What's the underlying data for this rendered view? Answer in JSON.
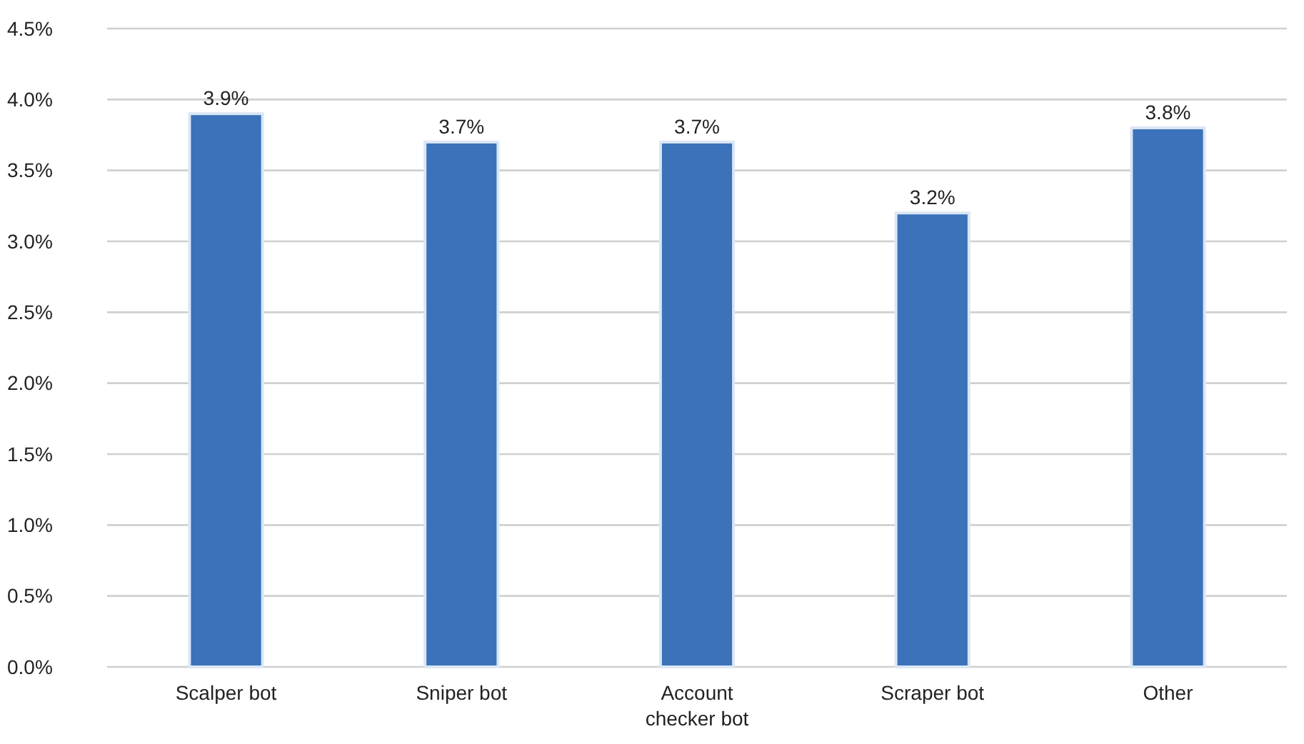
{
  "chart_data": {
    "type": "bar",
    "categories": [
      "Scalper bot",
      "Sniper bot",
      "Account checker bot",
      "Scraper bot",
      "Other"
    ],
    "values": [
      3.9,
      3.7,
      3.7,
      3.2,
      3.8
    ],
    "value_labels": [
      "3.9%",
      "3.7%",
      "3.7%",
      "3.2%",
      "3.8%"
    ],
    "color": "#3b72b9",
    "ylim": [
      0,
      4.5
    ],
    "yticks": [
      {
        "value": 0,
        "label": "0.0%"
      },
      {
        "value": 0.5,
        "label": "0.5%"
      },
      {
        "value": 1,
        "label": "1.0%"
      },
      {
        "value": 1.5,
        "label": "1.5%"
      },
      {
        "value": 2,
        "label": "2.0%"
      },
      {
        "value": 2.5,
        "label": "2.5%"
      },
      {
        "value": 3,
        "label": "3.0%"
      },
      {
        "value": 3.5,
        "label": "3.5%"
      },
      {
        "value": 4,
        "label": "4.0%"
      },
      {
        "value": 4.5,
        "label": "4.5%"
      }
    ],
    "grid": "y"
  }
}
